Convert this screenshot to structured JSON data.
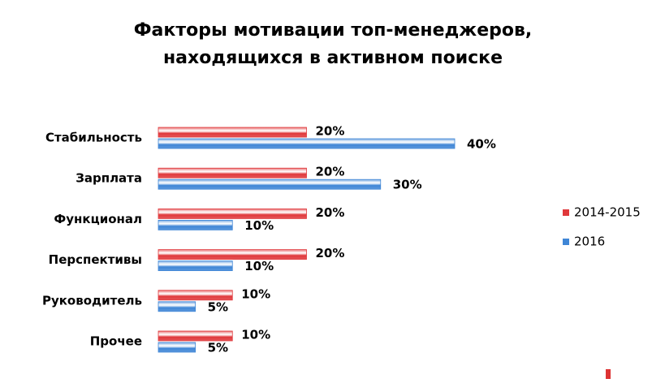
{
  "chart_data": {
    "type": "hbar",
    "title": [
      "Факторы мотивации топ-менеджеров,",
      "находящихся в  активном поиске"
    ],
    "categories": [
      "Стабильность",
      "Зарплата",
      "Функционал",
      "Перспективы",
      "Руководитель",
      "Прочее"
    ],
    "series": [
      {
        "name": "2014-2015",
        "color": "#e0383b",
        "values": [
          20,
          20,
          20,
          20,
          10,
          10
        ],
        "value_labels": [
          "20%",
          "20%",
          "20%",
          "20%",
          "10%",
          "10%"
        ]
      },
      {
        "name": "2016",
        "color": "#3f86d6",
        "values": [
          40,
          30,
          10,
          10,
          5,
          5
        ],
        "value_labels": [
          "40%",
          "30%",
          "10%",
          "10%",
          "5%",
          "5%"
        ]
      }
    ],
    "xlim": [
      0,
      40
    ],
    "legend": "right"
  }
}
